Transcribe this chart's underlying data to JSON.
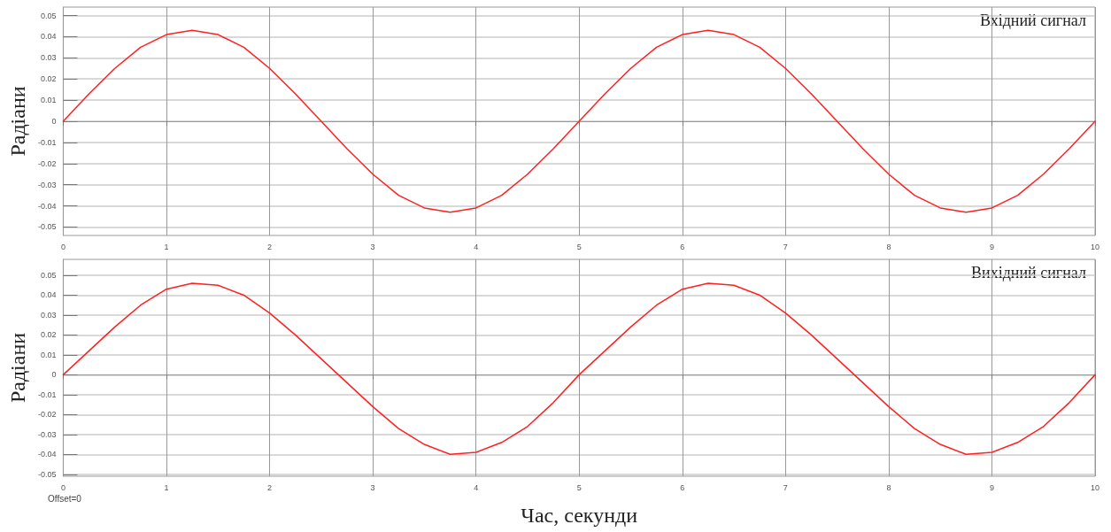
{
  "chart_data": [
    {
      "type": "line",
      "title": "Вхідний сигнал",
      "ylabel": "Радіани",
      "x": [
        0,
        0.25,
        0.5,
        0.75,
        1,
        1.25,
        1.5,
        1.75,
        2,
        2.25,
        2.5,
        2.75,
        3,
        3.25,
        3.5,
        3.75,
        4,
        4.25,
        4.5,
        4.75,
        5,
        5.25,
        5.5,
        5.75,
        6,
        6.25,
        6.5,
        6.75,
        7,
        7.25,
        7.5,
        7.75,
        8,
        8.25,
        8.5,
        8.75,
        9,
        9.25,
        9.5,
        9.75,
        10
      ],
      "series": [
        {
          "color": "#ff2020",
          "values": [
            0,
            0.013,
            0.025,
            0.035,
            0.041,
            0.043,
            0.041,
            0.035,
            0.025,
            0.013,
            0,
            -0.013,
            -0.025,
            -0.035,
            -0.041,
            -0.043,
            -0.041,
            -0.035,
            -0.025,
            -0.013,
            0,
            0.013,
            0.025,
            0.035,
            0.041,
            0.043,
            0.041,
            0.035,
            0.025,
            0.013,
            0,
            -0.013,
            -0.025,
            -0.035,
            -0.041,
            -0.043,
            -0.041,
            -0.035,
            -0.025,
            -0.013,
            0
          ]
        }
      ],
      "xlim": [
        0,
        10
      ],
      "xticks": [
        0,
        1,
        2,
        3,
        4,
        5,
        6,
        7,
        8,
        9,
        10
      ],
      "ylim": [
        -0.054,
        0.054
      ],
      "yticks": [
        -0.05,
        -0.04,
        -0.03,
        -0.02,
        -0.01,
        0,
        0.01,
        0.02,
        0.03,
        0.04,
        0.05
      ],
      "grid": true,
      "marker": "none",
      "line_style": "solid"
    },
    {
      "type": "line",
      "title": "Вихідний сигнал",
      "ylabel": "Радіани",
      "xlabel": "Час, секунди",
      "annotations": [
        "Offset=0"
      ],
      "x": [
        0,
        0.25,
        0.5,
        0.75,
        1,
        1.25,
        1.5,
        1.75,
        2,
        2.25,
        2.5,
        2.75,
        3,
        3.25,
        3.5,
        3.75,
        4,
        4.25,
        4.5,
        4.75,
        5,
        5.25,
        5.5,
        5.75,
        6,
        6.25,
        6.5,
        6.75,
        7,
        7.25,
        7.5,
        7.75,
        8,
        8.25,
        8.5,
        8.75,
        9,
        9.25,
        9.5,
        9.75,
        10
      ],
      "series": [
        {
          "color": "#ff2020",
          "values": [
            0,
            0.012,
            0.024,
            0.035,
            0.043,
            0.046,
            0.045,
            0.04,
            0.031,
            0.02,
            0.008,
            -0.004,
            -0.016,
            -0.027,
            -0.035,
            -0.04,
            -0.039,
            -0.034,
            -0.026,
            -0.014,
            0,
            0.012,
            0.024,
            0.035,
            0.043,
            0.046,
            0.045,
            0.04,
            0.031,
            0.02,
            0.008,
            -0.004,
            -0.016,
            -0.027,
            -0.035,
            -0.04,
            -0.039,
            -0.034,
            -0.026,
            -0.014,
            0
          ]
        }
      ],
      "xlim": [
        0,
        10
      ],
      "xticks": [
        0,
        1,
        2,
        3,
        4,
        5,
        6,
        7,
        8,
        9,
        10
      ],
      "ylim": [
        -0.051,
        0.058
      ],
      "yticks": [
        -0.05,
        -0.04,
        -0.03,
        -0.02,
        -0.01,
        0,
        0.01,
        0.02,
        0.03,
        0.04,
        0.05
      ],
      "grid": true,
      "marker": "none",
      "line_style": "solid"
    }
  ]
}
